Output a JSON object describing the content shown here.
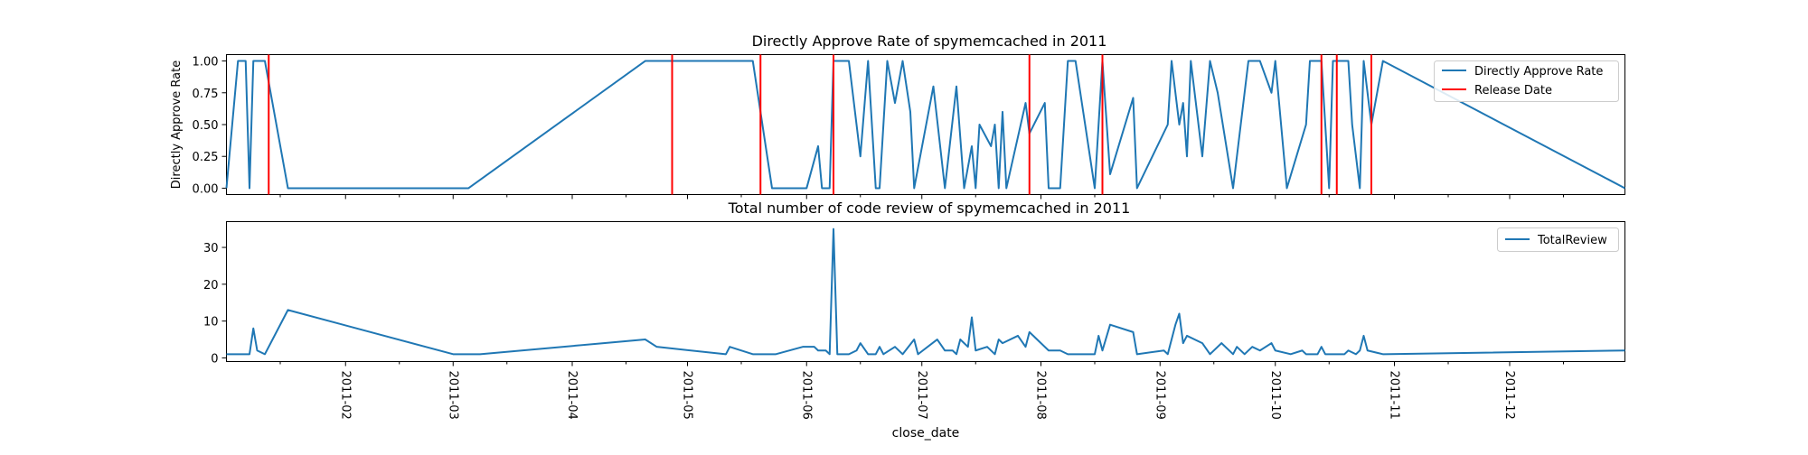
{
  "colors": {
    "series": "#1f77b4",
    "release": "#ff0000"
  },
  "chart_data": [
    {
      "type": "line",
      "title": "Directly Approve Rate of spymemcached in 2011",
      "ylabel": "Directly Approve Rate",
      "xlabel": "",
      "ylim": [
        -0.05,
        1.05
      ],
      "xlim": [
        "2011-01-01",
        "2011-12-31"
      ],
      "yticks": [
        "0.00",
        "0.25",
        "0.50",
        "0.75",
        "1.00"
      ],
      "grid": false,
      "legend": {
        "position": "top-right",
        "entries": [
          "Directly Approve Rate",
          "Release Date"
        ]
      },
      "series": [
        {
          "name": "Directly Approve Rate",
          "points": [
            [
              "2011-01-01",
              0
            ],
            [
              "2011-01-04",
              1
            ],
            [
              "2011-01-06",
              1
            ],
            [
              "2011-01-07",
              0
            ],
            [
              "2011-01-08",
              1
            ],
            [
              "2011-01-11",
              1
            ],
            [
              "2011-01-17",
              0
            ],
            [
              "2011-03-05",
              0
            ],
            [
              "2011-04-20",
              1
            ],
            [
              "2011-05-18",
              1
            ],
            [
              "2011-05-23",
              0
            ],
            [
              "2011-06-01",
              0
            ],
            [
              "2011-06-04",
              0.33
            ],
            [
              "2011-06-05",
              0
            ],
            [
              "2011-06-07",
              0
            ],
            [
              "2011-06-08",
              1
            ],
            [
              "2011-06-12",
              1
            ],
            [
              "2011-06-15",
              0.25
            ],
            [
              "2011-06-17",
              1
            ],
            [
              "2011-06-19",
              0
            ],
            [
              "2011-06-20",
              0
            ],
            [
              "2011-06-22",
              1
            ],
            [
              "2011-06-24",
              0.67
            ],
            [
              "2011-06-26",
              1
            ],
            [
              "2011-06-28",
              0.6
            ],
            [
              "2011-06-29",
              0
            ],
            [
              "2011-07-04",
              0.8
            ],
            [
              "2011-07-07",
              0
            ],
            [
              "2011-07-10",
              0.8
            ],
            [
              "2011-07-12",
              0
            ],
            [
              "2011-07-14",
              0.33
            ],
            [
              "2011-07-15",
              0
            ],
            [
              "2011-07-16",
              0.5
            ],
            [
              "2011-07-19",
              0.33
            ],
            [
              "2011-07-20",
              0.5
            ],
            [
              "2011-07-21",
              0
            ],
            [
              "2011-07-22",
              0.6
            ],
            [
              "2011-07-23",
              0
            ],
            [
              "2011-07-28",
              0.67
            ],
            [
              "2011-07-29",
              0.43
            ],
            [
              "2011-08-02",
              0.67
            ],
            [
              "2011-08-03",
              0
            ],
            [
              "2011-08-06",
              0
            ],
            [
              "2011-08-08",
              1
            ],
            [
              "2011-08-10",
              1
            ],
            [
              "2011-08-15",
              0
            ],
            [
              "2011-08-17",
              1
            ],
            [
              "2011-08-19",
              0.11
            ],
            [
              "2011-08-25",
              0.71
            ],
            [
              "2011-08-26",
              0
            ],
            [
              "2011-09-03",
              0.5
            ],
            [
              "2011-09-04",
              1
            ],
            [
              "2011-09-06",
              0.5
            ],
            [
              "2011-09-07",
              0.67
            ],
            [
              "2011-09-08",
              0.25
            ],
            [
              "2011-09-09",
              1
            ],
            [
              "2011-09-12",
              0.25
            ],
            [
              "2011-09-14",
              1
            ],
            [
              "2011-09-16",
              0.75
            ],
            [
              "2011-09-20",
              0
            ],
            [
              "2011-09-24",
              1
            ],
            [
              "2011-09-27",
              1
            ],
            [
              "2011-09-30",
              0.75
            ],
            [
              "2011-10-01",
              1
            ],
            [
              "2011-10-04",
              0
            ],
            [
              "2011-10-09",
              0.5
            ],
            [
              "2011-10-10",
              1
            ],
            [
              "2011-10-12",
              1
            ],
            [
              "2011-10-13",
              1
            ],
            [
              "2011-10-15",
              0
            ],
            [
              "2011-10-16",
              1
            ],
            [
              "2011-10-20",
              1
            ],
            [
              "2011-10-21",
              0.5
            ],
            [
              "2011-10-23",
              0
            ],
            [
              "2011-10-24",
              1
            ],
            [
              "2011-10-26",
              0.5
            ],
            [
              "2011-10-29",
              1
            ],
            [
              "2011-12-31",
              0
            ]
          ]
        }
      ],
      "release_dates": [
        "2011-01-12",
        "2011-04-27",
        "2011-05-20",
        "2011-06-08",
        "2011-07-29",
        "2011-08-17",
        "2011-10-13",
        "2011-10-17",
        "2011-10-26"
      ]
    },
    {
      "type": "line",
      "title": "Total number of code review of spymemcached in 2011",
      "ylabel": "",
      "xlabel": "close_date",
      "ylim": [
        -1,
        37
      ],
      "xlim": [
        "2011-01-01",
        "2011-12-31"
      ],
      "yticks": [
        "0",
        "10",
        "20",
        "30"
      ],
      "xticks": [
        "2011-02",
        "2011-03",
        "2011-04",
        "2011-05",
        "2011-06",
        "2011-07",
        "2011-08",
        "2011-09",
        "2011-10",
        "2011-11",
        "2011-12"
      ],
      "grid": false,
      "legend": {
        "position": "top-right",
        "entries": [
          "TotalReview"
        ]
      },
      "series": [
        {
          "name": "TotalReview",
          "points": [
            [
              "2011-01-01",
              1
            ],
            [
              "2011-01-07",
              1
            ],
            [
              "2011-01-08",
              8
            ],
            [
              "2011-01-09",
              2
            ],
            [
              "2011-01-11",
              1
            ],
            [
              "2011-01-17",
              13
            ],
            [
              "2011-03-01",
              1
            ],
            [
              "2011-03-08",
              1
            ],
            [
              "2011-04-20",
              5
            ],
            [
              "2011-04-23",
              3
            ],
            [
              "2011-05-11",
              1
            ],
            [
              "2011-05-12",
              3
            ],
            [
              "2011-05-18",
              1
            ],
            [
              "2011-05-24",
              1
            ],
            [
              "2011-05-31",
              3
            ],
            [
              "2011-06-03",
              3
            ],
            [
              "2011-06-04",
              2
            ],
            [
              "2011-06-06",
              2
            ],
            [
              "2011-06-07",
              1
            ],
            [
              "2011-06-08",
              35
            ],
            [
              "2011-06-09",
              1
            ],
            [
              "2011-06-12",
              1
            ],
            [
              "2011-06-14",
              2
            ],
            [
              "2011-06-15",
              4
            ],
            [
              "2011-06-17",
              1
            ],
            [
              "2011-06-19",
              1
            ],
            [
              "2011-06-20",
              3
            ],
            [
              "2011-06-21",
              1
            ],
            [
              "2011-06-24",
              3
            ],
            [
              "2011-06-26",
              1
            ],
            [
              "2011-06-29",
              5
            ],
            [
              "2011-06-30",
              1
            ],
            [
              "2011-07-05",
              5
            ],
            [
              "2011-07-07",
              2
            ],
            [
              "2011-07-09",
              2
            ],
            [
              "2011-07-10",
              1
            ],
            [
              "2011-07-11",
              5
            ],
            [
              "2011-07-13",
              3
            ],
            [
              "2011-07-14",
              11
            ],
            [
              "2011-07-15",
              2
            ],
            [
              "2011-07-18",
              3
            ],
            [
              "2011-07-20",
              1
            ],
            [
              "2011-07-21",
              5
            ],
            [
              "2011-07-22",
              4
            ],
            [
              "2011-07-26",
              6
            ],
            [
              "2011-07-28",
              3
            ],
            [
              "2011-07-29",
              7
            ],
            [
              "2011-08-03",
              2
            ],
            [
              "2011-08-06",
              2
            ],
            [
              "2011-08-08",
              1
            ],
            [
              "2011-08-15",
              1
            ],
            [
              "2011-08-16",
              6
            ],
            [
              "2011-08-17",
              2
            ],
            [
              "2011-08-19",
              9
            ],
            [
              "2011-08-25",
              7
            ],
            [
              "2011-08-26",
              1
            ],
            [
              "2011-09-02",
              2
            ],
            [
              "2011-09-03",
              1
            ],
            [
              "2011-09-05",
              9
            ],
            [
              "2011-09-06",
              12
            ],
            [
              "2011-09-07",
              4
            ],
            [
              "2011-09-08",
              6
            ],
            [
              "2011-09-12",
              4
            ],
            [
              "2011-09-14",
              1
            ],
            [
              "2011-09-17",
              4
            ],
            [
              "2011-09-20",
              1
            ],
            [
              "2011-09-21",
              3
            ],
            [
              "2011-09-23",
              1
            ],
            [
              "2011-09-25",
              3
            ],
            [
              "2011-09-27",
              2
            ],
            [
              "2011-09-30",
              4
            ],
            [
              "2011-10-01",
              2
            ],
            [
              "2011-10-05",
              1
            ],
            [
              "2011-10-08",
              2
            ],
            [
              "2011-10-09",
              1
            ],
            [
              "2011-10-12",
              1
            ],
            [
              "2011-10-13",
              3
            ],
            [
              "2011-10-14",
              1
            ],
            [
              "2011-10-19",
              1
            ],
            [
              "2011-10-20",
              2
            ],
            [
              "2011-10-22",
              1
            ],
            [
              "2011-10-23",
              2
            ],
            [
              "2011-10-24",
              6
            ],
            [
              "2011-10-25",
              2
            ],
            [
              "2011-10-29",
              1
            ],
            [
              "2011-12-31",
              2
            ]
          ]
        }
      ]
    }
  ]
}
